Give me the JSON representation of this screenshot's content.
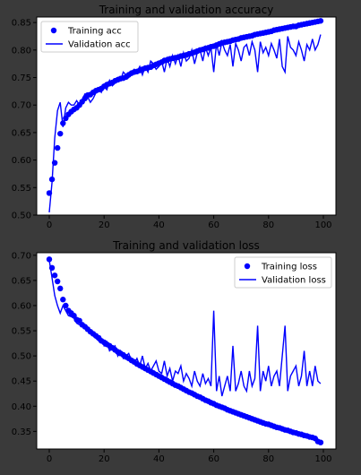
{
  "chart_data": [
    {
      "type": "line",
      "title": "Training and validation accuracy",
      "xlabel": "",
      "ylabel": "",
      "xlim": [
        0,
        100
      ],
      "ylim": [
        0.5,
        0.86
      ],
      "x_ticks": [
        0,
        20,
        40,
        60,
        80,
        100
      ],
      "y_ticks": [
        0.5,
        0.55,
        0.6,
        0.65,
        0.7,
        0.75,
        0.8,
        0.85
      ],
      "legend": {
        "position": "top-left"
      },
      "series": [
        {
          "name": "Training acc",
          "style": "points",
          "color": "#0000ff",
          "x": [
            0,
            1,
            2,
            3,
            4,
            5,
            6,
            7,
            8,
            9,
            10,
            11,
            12,
            13,
            14,
            15,
            16,
            17,
            18,
            19,
            20,
            21,
            22,
            23,
            24,
            25,
            26,
            27,
            28,
            29,
            30,
            31,
            32,
            33,
            34,
            35,
            36,
            37,
            38,
            39,
            40,
            41,
            42,
            43,
            44,
            45,
            46,
            47,
            48,
            49,
            50,
            51,
            52,
            53,
            54,
            55,
            56,
            57,
            58,
            59,
            60,
            61,
            62,
            63,
            64,
            65,
            66,
            67,
            68,
            69,
            70,
            71,
            72,
            73,
            74,
            75,
            76,
            77,
            78,
            79,
            80,
            81,
            82,
            83,
            84,
            85,
            86,
            87,
            88,
            89,
            90,
            91,
            92,
            93,
            94,
            95,
            96,
            97,
            98,
            99
          ],
          "y": [
            0.54,
            0.565,
            0.595,
            0.622,
            0.648,
            0.667,
            0.676,
            0.683,
            0.688,
            0.692,
            0.695,
            0.7,
            0.706,
            0.712,
            0.718,
            0.719,
            0.723,
            0.726,
            0.728,
            0.73,
            0.734,
            0.737,
            0.739,
            0.741,
            0.744,
            0.746,
            0.748,
            0.749,
            0.751,
            0.755,
            0.758,
            0.76,
            0.761,
            0.763,
            0.765,
            0.767,
            0.768,
            0.769,
            0.772,
            0.774,
            0.776,
            0.778,
            0.781,
            0.782,
            0.784,
            0.785,
            0.786,
            0.787,
            0.789,
            0.79,
            0.791,
            0.793,
            0.794,
            0.796,
            0.798,
            0.8,
            0.801,
            0.803,
            0.804,
            0.806,
            0.807,
            0.809,
            0.811,
            0.813,
            0.814,
            0.815,
            0.816,
            0.818,
            0.819,
            0.82,
            0.822,
            0.823,
            0.824,
            0.825,
            0.826,
            0.828,
            0.829,
            0.83,
            0.831,
            0.832,
            0.833,
            0.834,
            0.836,
            0.837,
            0.838,
            0.839,
            0.84,
            0.841,
            0.842,
            0.843,
            0.843,
            0.845,
            0.846,
            0.847,
            0.848,
            0.849,
            0.85,
            0.851,
            0.852,
            0.853
          ]
        },
        {
          "name": "Validation acc",
          "style": "line",
          "color": "#0000ff",
          "x": [
            0,
            1,
            2,
            3,
            4,
            5,
            6,
            7,
            8,
            9,
            10,
            11,
            12,
            13,
            14,
            15,
            16,
            17,
            18,
            19,
            20,
            21,
            22,
            23,
            24,
            25,
            26,
            27,
            28,
            29,
            30,
            31,
            32,
            33,
            34,
            35,
            36,
            37,
            38,
            39,
            40,
            41,
            42,
            43,
            44,
            45,
            46,
            47,
            48,
            49,
            50,
            51,
            52,
            53,
            54,
            55,
            56,
            57,
            58,
            59,
            60,
            61,
            62,
            63,
            64,
            65,
            66,
            67,
            68,
            69,
            70,
            71,
            72,
            73,
            74,
            75,
            76,
            77,
            78,
            79,
            80,
            81,
            82,
            83,
            84,
            85,
            86,
            87,
            88,
            89,
            90,
            91,
            92,
            93,
            94,
            95,
            96,
            97,
            98,
            99
          ],
          "y": [
            0.505,
            0.56,
            0.64,
            0.69,
            0.705,
            0.66,
            0.695,
            0.705,
            0.7,
            0.7,
            0.708,
            0.7,
            0.71,
            0.72,
            0.715,
            0.705,
            0.712,
            0.722,
            0.73,
            0.723,
            0.735,
            0.728,
            0.745,
            0.735,
            0.74,
            0.75,
            0.745,
            0.76,
            0.755,
            0.75,
            0.76,
            0.765,
            0.76,
            0.77,
            0.755,
            0.77,
            0.76,
            0.78,
            0.775,
            0.765,
            0.77,
            0.78,
            0.76,
            0.785,
            0.77,
            0.79,
            0.775,
            0.79,
            0.77,
            0.795,
            0.78,
            0.785,
            0.8,
            0.775,
            0.795,
            0.8,
            0.78,
            0.805,
            0.79,
            0.805,
            0.76,
            0.812,
            0.79,
            0.815,
            0.8,
            0.79,
            0.81,
            0.77,
            0.812,
            0.8,
            0.78,
            0.805,
            0.81,
            0.79,
            0.815,
            0.8,
            0.76,
            0.815,
            0.795,
            0.805,
            0.79,
            0.812,
            0.8,
            0.785,
            0.82,
            0.77,
            0.76,
            0.825,
            0.805,
            0.8,
            0.79,
            0.815,
            0.8,
            0.78,
            0.81,
            0.8,
            0.82,
            0.8,
            0.81,
            0.828
          ]
        }
      ]
    },
    {
      "type": "line",
      "title": "Training and validation loss",
      "xlabel": "",
      "ylabel": "",
      "xlim": [
        0,
        100
      ],
      "ylim": [
        0.315,
        0.705
      ],
      "x_ticks": [
        0,
        20,
        40,
        60,
        80,
        100
      ],
      "y_ticks": [
        0.35,
        0.4,
        0.45,
        0.5,
        0.55,
        0.6,
        0.65,
        0.7
      ],
      "legend": {
        "position": "top-right"
      },
      "series": [
        {
          "name": "Training loss",
          "style": "points",
          "color": "#0000ff",
          "x": [
            0,
            1,
            2,
            3,
            4,
            5,
            6,
            7,
            8,
            9,
            10,
            11,
            12,
            13,
            14,
            15,
            16,
            17,
            18,
            19,
            20,
            21,
            22,
            23,
            24,
            25,
            26,
            27,
            28,
            29,
            30,
            31,
            32,
            33,
            34,
            35,
            36,
            37,
            38,
            39,
            40,
            41,
            42,
            43,
            44,
            45,
            46,
            47,
            48,
            49,
            50,
            51,
            52,
            53,
            54,
            55,
            56,
            57,
            58,
            59,
            60,
            61,
            62,
            63,
            64,
            65,
            66,
            67,
            68,
            69,
            70,
            71,
            72,
            73,
            74,
            75,
            76,
            77,
            78,
            79,
            80,
            81,
            82,
            83,
            84,
            85,
            86,
            87,
            88,
            89,
            90,
            91,
            92,
            93,
            94,
            95,
            96,
            97,
            98,
            99
          ],
          "y": [
            0.692,
            0.675,
            0.66,
            0.648,
            0.634,
            0.612,
            0.6,
            0.59,
            0.585,
            0.58,
            0.572,
            0.57,
            0.562,
            0.558,
            0.553,
            0.548,
            0.544,
            0.54,
            0.536,
            0.53,
            0.527,
            0.523,
            0.52,
            0.516,
            0.512,
            0.508,
            0.505,
            0.502,
            0.498,
            0.495,
            0.491,
            0.488,
            0.484,
            0.481,
            0.478,
            0.475,
            0.472,
            0.469,
            0.466,
            0.463,
            0.46,
            0.457,
            0.454,
            0.451,
            0.448,
            0.445,
            0.442,
            0.44,
            0.437,
            0.434,
            0.431,
            0.428,
            0.426,
            0.423,
            0.42,
            0.418,
            0.415,
            0.412,
            0.41,
            0.407,
            0.405,
            0.402,
            0.4,
            0.398,
            0.396,
            0.393,
            0.391,
            0.389,
            0.387,
            0.385,
            0.383,
            0.381,
            0.379,
            0.377,
            0.375,
            0.373,
            0.371,
            0.369,
            0.367,
            0.365,
            0.364,
            0.362,
            0.36,
            0.358,
            0.357,
            0.355,
            0.353,
            0.352,
            0.35,
            0.348,
            0.347,
            0.345,
            0.344,
            0.342,
            0.341,
            0.339,
            0.338,
            0.336,
            0.33,
            0.328
          ]
        },
        {
          "name": "Validation loss",
          "style": "line",
          "color": "#0000ff",
          "x": [
            0,
            1,
            2,
            3,
            4,
            5,
            6,
            7,
            8,
            9,
            10,
            11,
            12,
            13,
            14,
            15,
            16,
            17,
            18,
            19,
            20,
            21,
            22,
            23,
            24,
            25,
            26,
            27,
            28,
            29,
            30,
            31,
            32,
            33,
            34,
            35,
            36,
            37,
            38,
            39,
            40,
            41,
            42,
            43,
            44,
            45,
            46,
            47,
            48,
            49,
            50,
            51,
            52,
            53,
            54,
            55,
            56,
            57,
            58,
            59,
            60,
            61,
            62,
            63,
            64,
            65,
            66,
            67,
            68,
            69,
            70,
            71,
            72,
            73,
            74,
            75,
            76,
            77,
            78,
            79,
            80,
            81,
            82,
            83,
            84,
            85,
            86,
            87,
            88,
            89,
            90,
            91,
            92,
            93,
            94,
            95,
            96,
            97,
            98,
            99
          ],
          "y": [
            0.69,
            0.655,
            0.62,
            0.6,
            0.585,
            0.6,
            0.59,
            0.58,
            0.578,
            0.575,
            0.565,
            0.562,
            0.56,
            0.555,
            0.55,
            0.552,
            0.54,
            0.535,
            0.53,
            0.535,
            0.52,
            0.528,
            0.51,
            0.515,
            0.52,
            0.5,
            0.51,
            0.495,
            0.5,
            0.505,
            0.49,
            0.485,
            0.495,
            0.48,
            0.5,
            0.475,
            0.485,
            0.47,
            0.48,
            0.49,
            0.47,
            0.465,
            0.49,
            0.46,
            0.475,
            0.45,
            0.47,
            0.465,
            0.48,
            0.45,
            0.465,
            0.455,
            0.44,
            0.47,
            0.45,
            0.44,
            0.465,
            0.445,
            0.455,
            0.44,
            0.59,
            0.43,
            0.46,
            0.42,
            0.44,
            0.46,
            0.43,
            0.52,
            0.43,
            0.445,
            0.47,
            0.44,
            0.43,
            0.47,
            0.44,
            0.455,
            0.56,
            0.43,
            0.47,
            0.45,
            0.48,
            0.44,
            0.46,
            0.47,
            0.44,
            0.5,
            0.56,
            0.43,
            0.46,
            0.47,
            0.48,
            0.44,
            0.46,
            0.51,
            0.44,
            0.47,
            0.44,
            0.48,
            0.45,
            0.445
          ]
        }
      ]
    }
  ]
}
